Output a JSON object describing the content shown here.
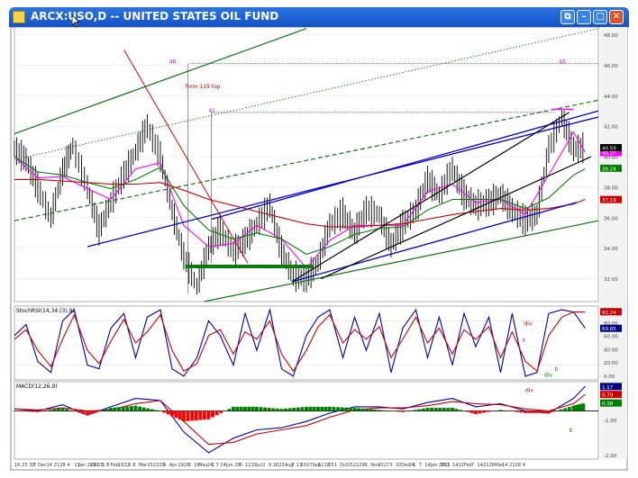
{
  "window": {
    "title": "ARCX:USO,D -- UNITED STATES OIL FUND",
    "buttons": [
      {
        "name": "restore-button",
        "glyph": "⧉"
      },
      {
        "name": "minimize-button",
        "glyph": "–"
      },
      {
        "name": "maximize-button",
        "glyph": "□"
      },
      {
        "name": "close-button",
        "glyph": "✕"
      }
    ],
    "colors": {
      "titlebar": "#1d5fd2",
      "close": "#d9532c"
    }
  },
  "chart_data": [
    {
      "type": "line",
      "panel": "price",
      "title": "ARCX:USO,D -- UNITED STATES OIL FUND",
      "ylim": [
        30.5,
        48.5
      ],
      "yticks": [
        32.0,
        34.0,
        36.0,
        38.0,
        40.0,
        42.0,
        44.0,
        46.0,
        48.0
      ],
      "ytick_labels": [
        "32.00",
        "34.00",
        "36.00",
        "38.00",
        "40.00",
        "42.00",
        "44.00",
        "46.00",
        "48.00"
      ],
      "price_badges": [
        {
          "value": 40.27,
          "label": "40.27",
          "color": "#ff00ff"
        },
        {
          "value": 40.59,
          "label": "40.59",
          "color": "#000000"
        },
        {
          "value": 39.24,
          "label": "39.24",
          "color": "#008000"
        },
        {
          "value": 37.19,
          "label": "37.19",
          "color": "#cc0000"
        }
      ],
      "series": [
        {
          "role": "price",
          "color": "#000000",
          "x": [
            0,
            8,
            16,
            25,
            33,
            40,
            50,
            58,
            66,
            75,
            83,
            91,
            100,
            108,
            116,
            125,
            133,
            141,
            150,
            158,
            166,
            175,
            183,
            191,
            200,
            208,
            216,
            225,
            233,
            241,
            250,
            258,
            266,
            275,
            283,
            291,
            300,
            308,
            316,
            325,
            333,
            341,
            350,
            358,
            366,
            375,
            383,
            391
          ],
          "y": [
            40.5,
            39.8,
            38.0,
            36.0,
            39.0,
            40.7,
            38.0,
            35.2,
            37.0,
            38.8,
            40.3,
            42.0,
            40.0,
            36.5,
            33.5,
            31.5,
            34.0,
            35.2,
            33.8,
            34.5,
            35.5,
            36.8,
            33.8,
            32.2,
            32.0,
            33.0,
            35.5,
            36.3,
            35.0,
            36.5,
            36.2,
            34.2,
            35.5,
            36.5,
            38.5,
            37.5,
            39.2,
            37.5,
            36.8,
            37.0,
            37.5,
            36.5,
            35.8,
            36.2,
            40.5,
            42.5,
            40.5,
            40.6
          ]
        },
        {
          "role": "ema-short",
          "color": "#ff00ff",
          "x": [
            0,
            16,
            33,
            50,
            66,
            83,
            100,
            116,
            133,
            150,
            166,
            183,
            200,
            216,
            233,
            250,
            266,
            283,
            300,
            316,
            333,
            350,
            366,
            383,
            391
          ],
          "y": [
            40.0,
            38.6,
            38.7,
            37.9,
            37.2,
            39.2,
            39.6,
            35.5,
            34.1,
            34.3,
            35.5,
            34.6,
            32.7,
            34.5,
            35.5,
            35.5,
            35.5,
            37.7,
            38.2,
            37.0,
            37.2,
            36.2,
            38.8,
            41.6,
            40.3
          ]
        },
        {
          "role": "ema-medium",
          "color": "#008000",
          "x": [
            0,
            16,
            33,
            50,
            66,
            83,
            100,
            116,
            133,
            150,
            166,
            183,
            200,
            216,
            233,
            250,
            266,
            283,
            300,
            316,
            333,
            350,
            366,
            383,
            391
          ],
          "y": [
            40.0,
            39.0,
            38.8,
            38.3,
            37.9,
            38.5,
            39.3,
            36.8,
            35.2,
            34.6,
            35.0,
            34.6,
            33.6,
            34.1,
            34.9,
            35.3,
            35.4,
            36.5,
            37.2,
            37.2,
            37.2,
            36.6,
            37.3,
            38.8,
            39.2
          ]
        },
        {
          "role": "ema-long",
          "color": "#cc0000",
          "x": [
            0,
            16,
            33,
            50,
            66,
            83,
            100,
            116,
            133,
            150,
            166,
            183,
            200,
            216,
            233,
            250,
            266,
            283,
            300,
            316,
            333,
            350,
            366,
            383,
            391
          ],
          "y": [
            38.5,
            38.5,
            38.4,
            38.3,
            38.2,
            38.2,
            38.3,
            37.8,
            37.2,
            36.8,
            36.4,
            36.0,
            35.6,
            35.4,
            35.4,
            35.5,
            35.6,
            35.9,
            36.2,
            36.4,
            36.6,
            36.5,
            36.6,
            36.9,
            37.2
          ]
        }
      ],
      "annotations": [
        {
          "text": "from 119 top",
          "x": 117,
          "y": 44.5,
          "color": "#cc0000"
        },
        {
          "text": "46",
          "x": 106,
          "y": 46.1,
          "color": "#cc00cc"
        },
        {
          "text": "46",
          "x": 373,
          "y": 46.1,
          "color": "#cc00cc"
        },
        {
          "text": "41",
          "x": 133,
          "y": 42.9,
          "color": "#cc00cc"
        }
      ]
    },
    {
      "type": "line",
      "panel": "stochrsi",
      "title": "StochRSI(14,34,(3),9)",
      "ylim": [
        0,
        100
      ],
      "ytick_labels": [
        "100.00",
        "80.00",
        "60.00",
        "40.00",
        "20.00",
        "0.00"
      ],
      "badges": [
        {
          "value": 92.24,
          "label": "92.24",
          "color": "#cc0000"
        },
        {
          "value": 69.85,
          "label": "69.85",
          "color": "#000080"
        }
      ],
      "series": [
        {
          "role": "k",
          "color": "#0000aa",
          "x": [
            0,
            8,
            16,
            25,
            33,
            41,
            50,
            58,
            66,
            75,
            83,
            91,
            100,
            108,
            116,
            125,
            133,
            141,
            150,
            158,
            166,
            175,
            183,
            191,
            200,
            208,
            216,
            225,
            233,
            241,
            250,
            258,
            266,
            275,
            283,
            291,
            300,
            308,
            316,
            325,
            333,
            341,
            350,
            358,
            366,
            375,
            383,
            391
          ],
          "y": [
            60,
            75,
            25,
            10,
            80,
            95,
            20,
            15,
            70,
            90,
            30,
            85,
            95,
            15,
            5,
            30,
            80,
            60,
            20,
            90,
            40,
            95,
            15,
            5,
            60,
            85,
            95,
            30,
            85,
            40,
            90,
            10,
            70,
            95,
            30,
            85,
            20,
            90,
            45,
            85,
            10,
            90,
            5,
            10,
            90,
            95,
            92,
            70
          ]
        },
        {
          "role": "d",
          "color": "#cc0000",
          "x": [
            0,
            8,
            16,
            25,
            33,
            41,
            50,
            58,
            66,
            75,
            83,
            91,
            100,
            108,
            116,
            125,
            133,
            141,
            150,
            158,
            166,
            175,
            183,
            191,
            200,
            208,
            216,
            225,
            233,
            241,
            250,
            258,
            266,
            275,
            283,
            291,
            300,
            308,
            316,
            325,
            333,
            341,
            350,
            358,
            366,
            375,
            383,
            391
          ],
          "y": [
            55,
            68,
            40,
            18,
            55,
            88,
            40,
            22,
            52,
            82,
            50,
            65,
            88,
            40,
            12,
            22,
            60,
            68,
            35,
            65,
            55,
            80,
            35,
            12,
            40,
            72,
            88,
            50,
            68,
            55,
            72,
            30,
            55,
            85,
            50,
            70,
            35,
            68,
            55,
            72,
            30,
            65,
            25,
            12,
            60,
            85,
            92,
            92
          ]
        }
      ],
      "annotations": [
        {
          "text": "div",
          "x": 349,
          "y": 74,
          "color": "#cc0000"
        },
        {
          "text": "s",
          "x": 348,
          "y": 52,
          "color": "#cc0000"
        },
        {
          "text": "b",
          "x": 370,
          "y": 12,
          "color": "#008000"
        },
        {
          "text": "div",
          "x": 363,
          "y": 4,
          "color": "#008000"
        }
      ]
    },
    {
      "type": "bar",
      "panel": "macd",
      "title": "MACD(12,26,9)",
      "ylim": [
        -2.3,
        1.4
      ],
      "ytick_labels": [
        "1.00",
        "-1.00",
        "-2.00"
      ],
      "badges": [
        {
          "value": 1.17,
          "label": "1.17",
          "color": "#000080"
        },
        {
          "value": 0.79,
          "label": "0.79",
          "color": "#cc0000"
        },
        {
          "value": 0.38,
          "label": "0.38",
          "color": "#008000"
        }
      ],
      "series": [
        {
          "role": "macd-line",
          "color": "#0000aa",
          "x": [
            0,
            16,
            33,
            50,
            66,
            83,
            100,
            116,
            133,
            150,
            166,
            183,
            200,
            216,
            233,
            250,
            266,
            283,
            300,
            316,
            333,
            350,
            366,
            383,
            391
          ],
          "y": [
            0.1,
            0.0,
            0.3,
            -0.2,
            0.2,
            0.6,
            0.5,
            -1.0,
            -2.0,
            -1.3,
            -0.9,
            -0.8,
            -0.5,
            -0.1,
            0.2,
            0.2,
            0.1,
            0.4,
            0.6,
            0.2,
            0.35,
            0.0,
            -0.1,
            0.6,
            1.17
          ]
        },
        {
          "role": "signal-line",
          "color": "#cc0000",
          "x": [
            0,
            16,
            33,
            50,
            66,
            83,
            100,
            116,
            133,
            150,
            166,
            183,
            200,
            216,
            233,
            250,
            266,
            283,
            300,
            316,
            333,
            350,
            366,
            383,
            391
          ],
          "y": [
            0.1,
            0.05,
            0.15,
            0.0,
            0.05,
            0.35,
            0.5,
            -0.5,
            -1.6,
            -1.5,
            -1.1,
            -0.9,
            -0.7,
            -0.3,
            0.05,
            0.15,
            0.15,
            0.25,
            0.45,
            0.35,
            0.3,
            0.1,
            0.0,
            0.35,
            0.79
          ]
        },
        {
          "role": "histogram",
          "color": "#008000",
          "negative_color": "#ff0000",
          "x": [
            0,
            16,
            33,
            50,
            66,
            83,
            100,
            116,
            133,
            150,
            166,
            183,
            200,
            216,
            233,
            250,
            266,
            283,
            300,
            316,
            333,
            350,
            366,
            383,
            391
          ],
          "y": [
            0.0,
            -0.05,
            0.15,
            -0.2,
            0.15,
            0.25,
            0.0,
            -0.5,
            -0.4,
            0.2,
            0.2,
            0.1,
            0.2,
            0.2,
            0.15,
            0.05,
            -0.05,
            0.15,
            0.15,
            -0.15,
            0.05,
            -0.1,
            -0.1,
            0.25,
            0.38
          ]
        }
      ],
      "annotations": [
        {
          "text": "div",
          "x": 350,
          "y": 0.9,
          "color": "#cc0000"
        },
        {
          "text": "b",
          "x": 380,
          "y": -1.0,
          "color": "#008000"
        }
      ]
    }
  ],
  "x_axis": {
    "ticks": [
      {
        "x": 0,
        "label": "16"
      },
      {
        "x": 5,
        "label": "23"
      },
      {
        "x": 10,
        "label": "30"
      },
      {
        "x": 13,
        "label": "7"
      },
      {
        "x": 16,
        "label": "Dec"
      },
      {
        "x": 22,
        "label": "14"
      },
      {
        "x": 27,
        "label": "21"
      },
      {
        "x": 31,
        "label": "28"
      },
      {
        "x": 36,
        "label": "4"
      },
      {
        "x": 41,
        "label": "11"
      },
      {
        "x": 44,
        "label": "Jan 2010"
      },
      {
        "x": 52,
        "label": "19"
      },
      {
        "x": 57,
        "label": "25"
      },
      {
        "x": 60,
        "label": "1"
      },
      {
        "x": 63,
        "label": "8"
      },
      {
        "x": 66,
        "label": "Feb"
      },
      {
        "x": 71,
        "label": "16"
      },
      {
        "x": 75,
        "label": "22"
      },
      {
        "x": 78,
        "label": "1"
      },
      {
        "x": 81,
        "label": "8"
      },
      {
        "x": 85,
        "label": "Mar"
      },
      {
        "x": 91,
        "label": "15"
      },
      {
        "x": 95,
        "label": "22"
      },
      {
        "x": 99,
        "label": "29"
      },
      {
        "x": 102,
        "label": "5"
      },
      {
        "x": 106,
        "label": "Apr"
      },
      {
        "x": 112,
        "label": "19"
      },
      {
        "x": 116,
        "label": "26"
      },
      {
        "x": 119,
        "label": "3"
      },
      {
        "x": 123,
        "label": "10"
      },
      {
        "x": 126,
        "label": "May"
      },
      {
        "x": 132,
        "label": "24"
      },
      {
        "x": 135,
        "label": "1"
      },
      {
        "x": 138,
        "label": "7"
      },
      {
        "x": 141,
        "label": "14"
      },
      {
        "x": 145,
        "label": "Jun"
      },
      {
        "x": 151,
        "label": "28"
      },
      {
        "x": 154,
        "label": "6"
      },
      {
        "x": 158,
        "label": "12"
      },
      {
        "x": 162,
        "label": "19"
      },
      {
        "x": 166,
        "label": "Jul"
      },
      {
        "x": 170,
        "label": "2"
      },
      {
        "x": 174,
        "label": "9"
      },
      {
        "x": 177,
        "label": "16"
      },
      {
        "x": 181,
        "label": "23"
      },
      {
        "x": 185,
        "label": "Aug"
      },
      {
        "x": 190,
        "label": "7"
      },
      {
        "x": 193,
        "label": "13"
      },
      {
        "x": 196,
        "label": "20"
      },
      {
        "x": 200,
        "label": "27"
      },
      {
        "x": 204,
        "label": "Sep"
      },
      {
        "x": 208,
        "label": "11"
      },
      {
        "x": 212,
        "label": "18"
      },
      {
        "x": 215,
        "label": "25"
      },
      {
        "x": 219,
        "label": "1"
      },
      {
        "x": 223,
        "label": "Oct"
      },
      {
        "x": 228,
        "label": "15"
      },
      {
        "x": 232,
        "label": "22"
      },
      {
        "x": 236,
        "label": "29"
      },
      {
        "x": 240,
        "label": "6"
      },
      {
        "x": 244,
        "label": "Nov"
      },
      {
        "x": 249,
        "label": "20"
      },
      {
        "x": 253,
        "label": "27"
      },
      {
        "x": 257,
        "label": "3"
      },
      {
        "x": 261,
        "label": "10"
      },
      {
        "x": 265,
        "label": "Dec"
      },
      {
        "x": 270,
        "label": "24"
      },
      {
        "x": 273,
        "label": "1"
      },
      {
        "x": 277,
        "label": "7"
      },
      {
        "x": 281,
        "label": "14"
      },
      {
        "x": 285,
        "label": "Jan 2011"
      },
      {
        "x": 292,
        "label": "31"
      },
      {
        "x": 296,
        "label": "7"
      },
      {
        "x": 300,
        "label": "14"
      },
      {
        "x": 304,
        "label": "22"
      },
      {
        "x": 308,
        "label": "Feb"
      },
      {
        "x": 313,
        "label": "7"
      },
      {
        "x": 317,
        "label": "14"
      },
      {
        "x": 321,
        "label": "21"
      },
      {
        "x": 325,
        "label": "28"
      },
      {
        "x": 329,
        "label": "Mar"
      },
      {
        "x": 334,
        "label": "14"
      },
      {
        "x": 339,
        "label": "21"
      },
      {
        "x": 343,
        "label": "28"
      },
      {
        "x": 348,
        "label": "4"
      }
    ],
    "xlim": [
      0,
      400
    ]
  }
}
